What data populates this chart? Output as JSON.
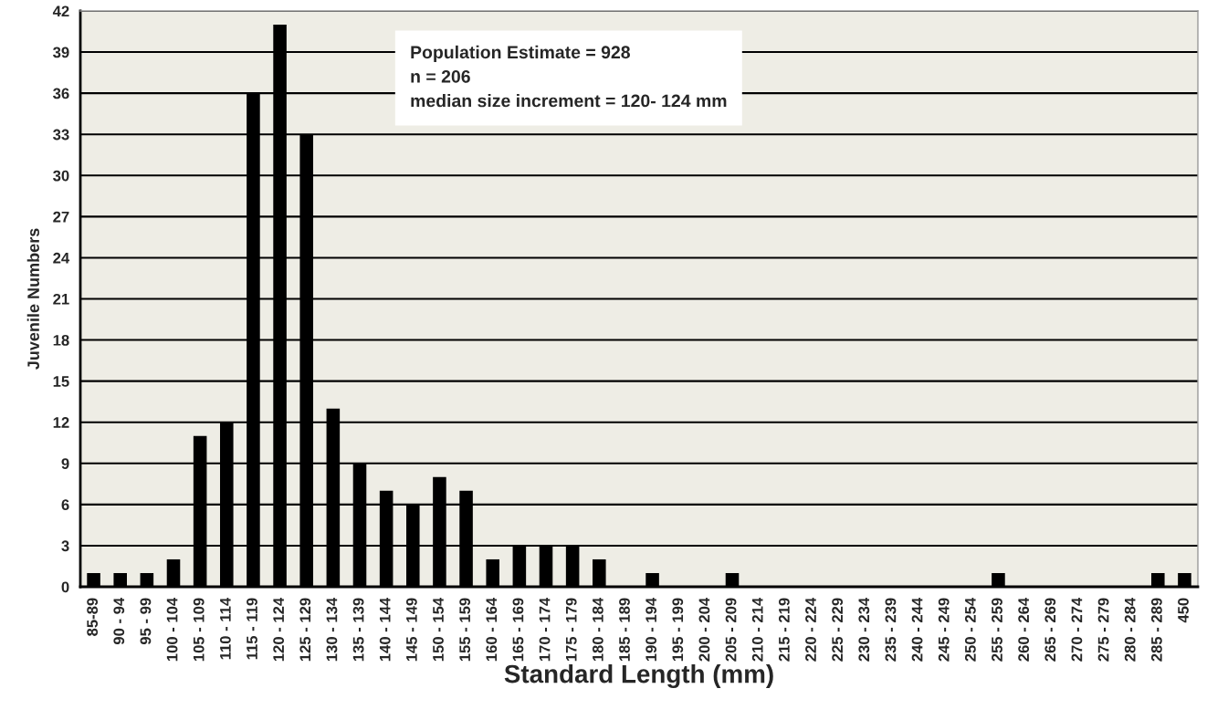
{
  "chart_data": {
    "type": "bar",
    "xlabel": "Standard Length (mm)",
    "ylabel": "Juvenile Numbers",
    "categories": [
      "85-89",
      "90 - 94",
      "95 - 99",
      "100 - 104",
      "105 - 109",
      "110 - 114",
      "115 - 119",
      "120 - 124",
      "125 - 129",
      "130 - 134",
      "135 - 139",
      "140 - 144",
      "145 - 149",
      "150 - 154",
      "155 - 159",
      "160 - 164",
      "165 - 169",
      "170 - 174",
      "175 - 179",
      "180 - 184",
      "185 - 189",
      "190 - 194",
      "195 - 199",
      "200 - 204",
      "205 - 209",
      "210 - 214",
      "215 - 219",
      "220 - 224",
      "225 - 229",
      "230 - 234",
      "235 - 239",
      "240 - 244",
      "245 - 249",
      "250 - 254",
      "255 - 259",
      "260 - 264",
      "265 - 269",
      "270 - 274",
      "275 - 279",
      "280 - 284",
      "285 - 289",
      "450"
    ],
    "values": [
      1,
      1,
      1,
      2,
      11,
      12,
      36,
      41,
      33,
      13,
      9,
      7,
      6,
      8,
      7,
      2,
      3,
      3,
      3,
      2,
      0,
      1,
      0,
      0,
      1,
      0,
      0,
      0,
      0,
      0,
      0,
      0,
      0,
      0,
      1,
      0,
      0,
      0,
      0,
      0,
      1,
      1
    ],
    "color": "#000000",
    "ylim": [
      0,
      42
    ],
    "yticks": [
      0,
      3,
      6,
      9,
      12,
      15,
      18,
      21,
      24,
      27,
      30,
      33,
      36,
      39,
      42
    ],
    "grid": "y",
    "annotations": [
      "Population Estimate = 928",
      "n = 206",
      "median size increment = 120- 124 mm"
    ]
  }
}
